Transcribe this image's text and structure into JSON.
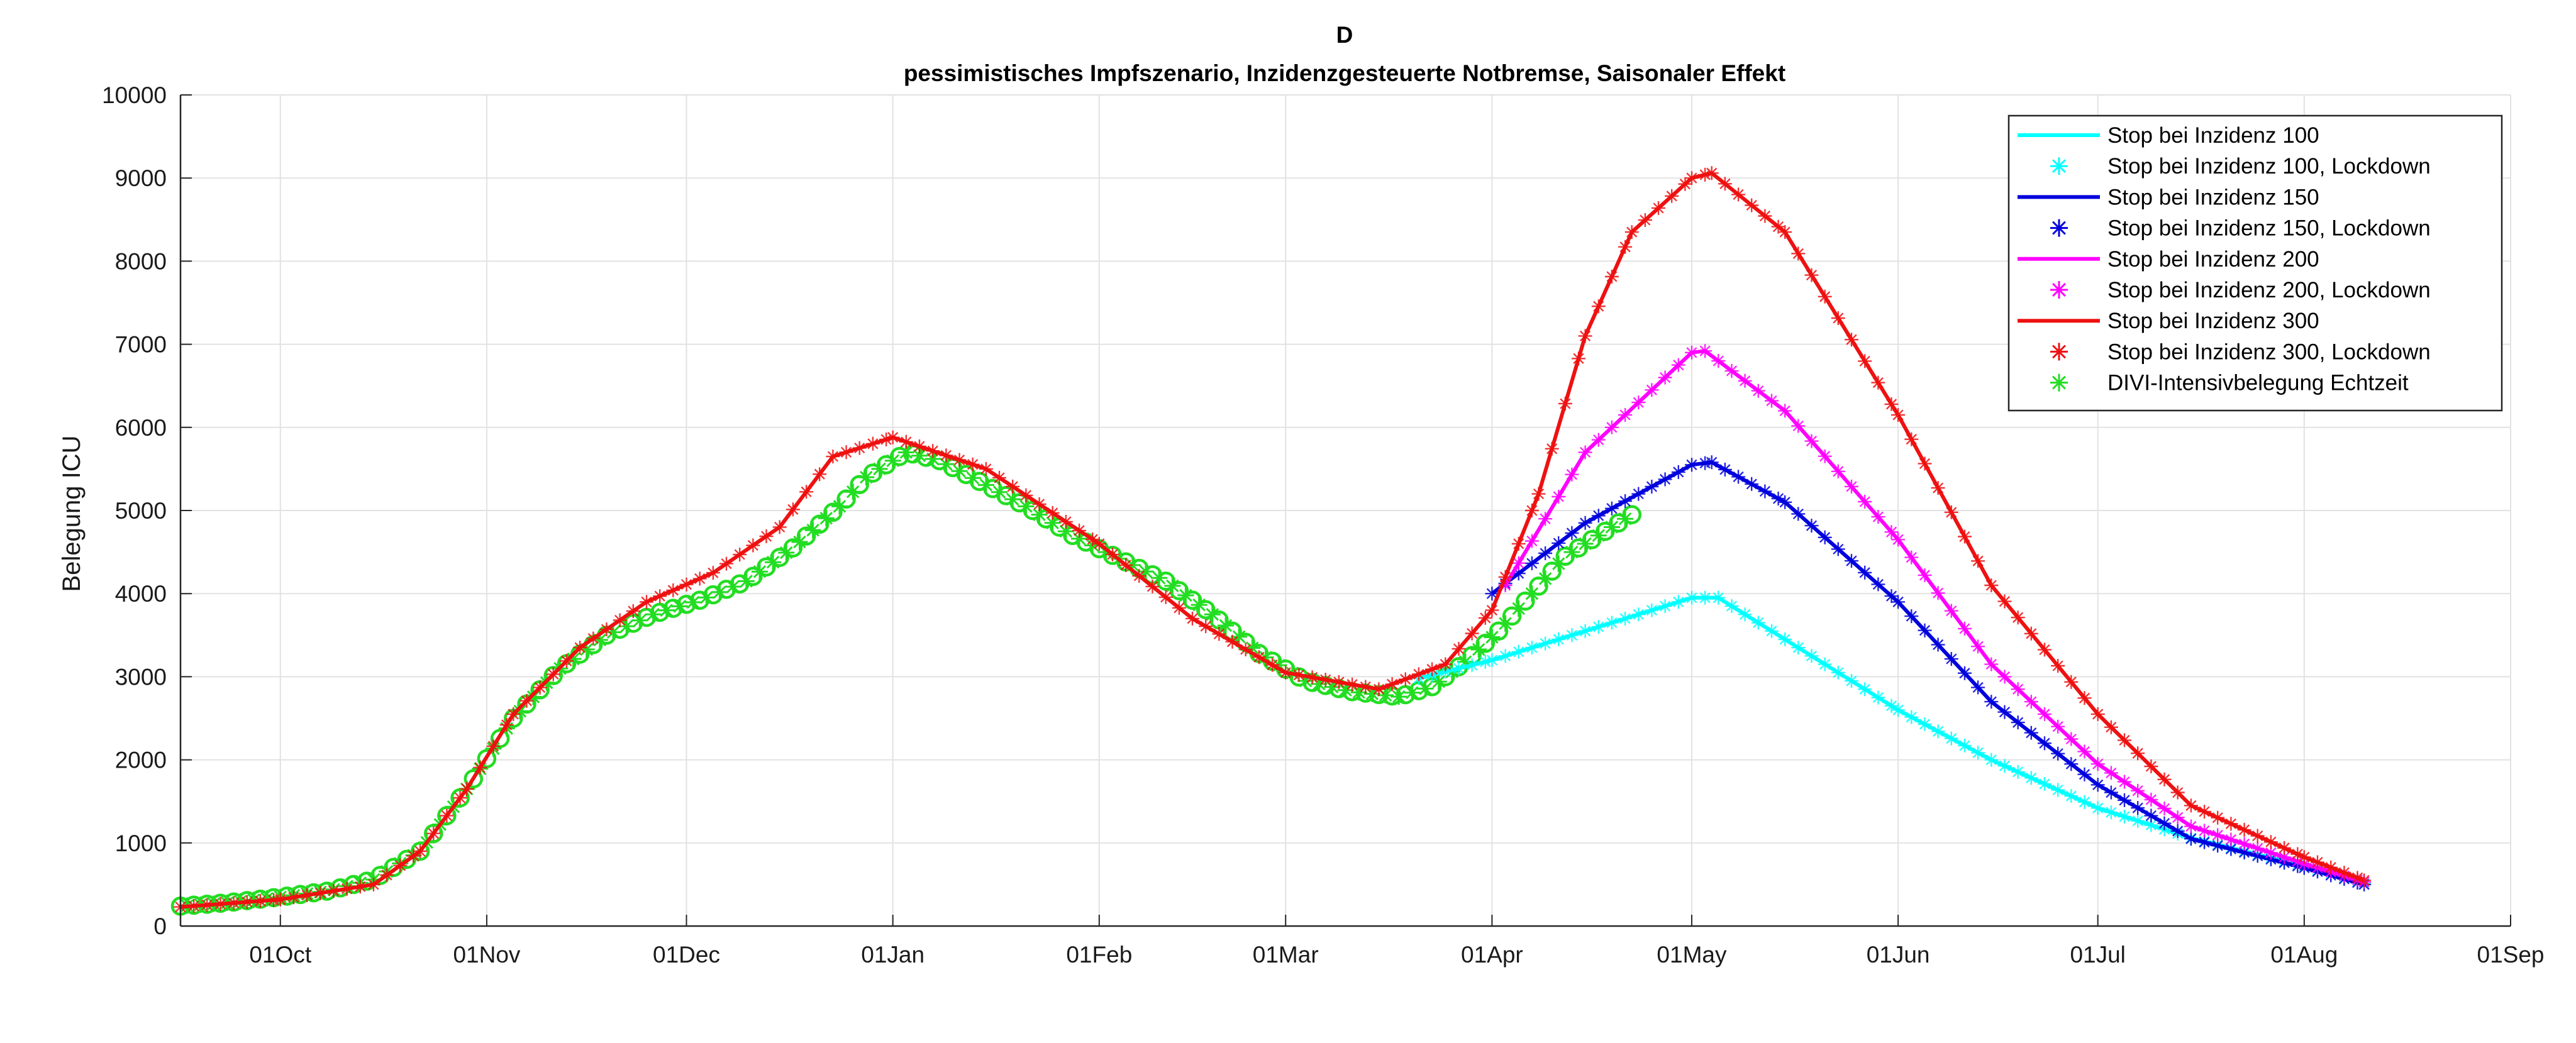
{
  "chart_data": {
    "type": "line",
    "title": "D",
    "subtitle": "pessimistisches Impfszenario, Inzidenzgesteuerte Notbremse, Saisonaler Effekt",
    "xlabel": "",
    "ylabel": "Belegung ICU",
    "x_axis": {
      "min": "2020-09-16",
      "max": "2021-09-01",
      "ticks": [
        {
          "date": "2020-10-01",
          "label": "01Oct"
        },
        {
          "date": "2020-11-01",
          "label": "01Nov"
        },
        {
          "date": "2020-12-01",
          "label": "01Dec"
        },
        {
          "date": "2021-01-01",
          "label": "01Jan"
        },
        {
          "date": "2021-02-01",
          "label": "01Feb"
        },
        {
          "date": "2021-03-01",
          "label": "01Mar"
        },
        {
          "date": "2021-04-01",
          "label": "01Apr"
        },
        {
          "date": "2021-05-01",
          "label": "01May"
        },
        {
          "date": "2021-06-01",
          "label": "01Jun"
        },
        {
          "date": "2021-07-01",
          "label": "01Jul"
        },
        {
          "date": "2021-08-01",
          "label": "01Aug"
        },
        {
          "date": "2021-09-01",
          "label": "01Sep"
        }
      ]
    },
    "ylim": [
      0,
      10000
    ],
    "yticks": [
      "0",
      "1000",
      "2000",
      "3000",
      "4000",
      "5000",
      "6000",
      "7000",
      "8000",
      "9000",
      "10000"
    ],
    "grid": true,
    "legend_position": "top-right",
    "series": [
      {
        "name": "DIVI-Intensivbelegung Echtzeit",
        "color": "#22dd22",
        "style": "circle-and-star markers",
        "points": [
          [
            "2020-09-16",
            240
          ],
          [
            "2020-09-23",
            280
          ],
          [
            "2020-10-01",
            350
          ],
          [
            "2020-10-08",
            420
          ],
          [
            "2020-10-15",
            560
          ],
          [
            "2020-10-22",
            900
          ],
          [
            "2020-10-29",
            1650
          ],
          [
            "2020-11-05",
            2500
          ],
          [
            "2020-11-12",
            3100
          ],
          [
            "2020-11-19",
            3500
          ],
          [
            "2020-11-26",
            3750
          ],
          [
            "2020-12-03",
            3920
          ],
          [
            "2020-12-10",
            4150
          ],
          [
            "2020-12-17",
            4550
          ],
          [
            "2020-12-24",
            5050
          ],
          [
            "2020-12-28",
            5400
          ],
          [
            "2021-01-03",
            5700
          ],
          [
            "2021-01-08",
            5600
          ],
          [
            "2021-01-14",
            5350
          ],
          [
            "2021-01-21",
            5050
          ],
          [
            "2021-01-28",
            4700
          ],
          [
            "2021-02-04",
            4420
          ],
          [
            "2021-02-11",
            4150
          ],
          [
            "2021-02-18",
            3750
          ],
          [
            "2021-02-25",
            3280
          ],
          [
            "2021-03-04",
            2950
          ],
          [
            "2021-03-11",
            2820
          ],
          [
            "2021-03-18",
            2760
          ],
          [
            "2021-03-23",
            2880
          ],
          [
            "2021-03-28",
            3180
          ],
          [
            "2021-04-02",
            3550
          ],
          [
            "2021-04-07",
            4000
          ],
          [
            "2021-04-12",
            4450
          ],
          [
            "2021-04-17",
            4700
          ],
          [
            "2021-04-22",
            4950
          ]
        ]
      },
      {
        "name": "Stop bei Inzidenz 100",
        "color": "#00ffff",
        "style": "line with star markers",
        "points": [
          [
            "2021-03-21",
            2980
          ],
          [
            "2021-04-01",
            3200
          ],
          [
            "2021-04-15",
            3550
          ],
          [
            "2021-05-01",
            3950
          ],
          [
            "2021-05-05",
            3950
          ],
          [
            "2021-05-15",
            3450
          ],
          [
            "2021-06-01",
            2600
          ],
          [
            "2021-06-15",
            2000
          ],
          [
            "2021-07-01",
            1420
          ],
          [
            "2021-07-15",
            1060
          ],
          [
            "2021-08-01",
            720
          ],
          [
            "2021-08-10",
            510
          ]
        ]
      },
      {
        "name": "Stop bei Inzidenz 150",
        "color": "#0000dd",
        "style": "line with star markers",
        "points": [
          [
            "2021-04-01",
            4000
          ],
          [
            "2021-04-15",
            4850
          ],
          [
            "2021-05-01",
            5550
          ],
          [
            "2021-05-04",
            5580
          ],
          [
            "2021-05-15",
            5100
          ],
          [
            "2021-06-01",
            3900
          ],
          [
            "2021-06-15",
            2700
          ],
          [
            "2021-07-01",
            1700
          ],
          [
            "2021-07-15",
            1050
          ],
          [
            "2021-08-01",
            700
          ],
          [
            "2021-08-10",
            500
          ]
        ]
      },
      {
        "name": "Stop bei Inzidenz 200",
        "color": "#ff00ff",
        "style": "line with star markers",
        "points": [
          [
            "2021-04-03",
            4100
          ],
          [
            "2021-04-15",
            5700
          ],
          [
            "2021-05-01",
            6900
          ],
          [
            "2021-05-03",
            6920
          ],
          [
            "2021-05-15",
            6200
          ],
          [
            "2021-06-01",
            4650
          ],
          [
            "2021-06-15",
            3150
          ],
          [
            "2021-07-01",
            1950
          ],
          [
            "2021-07-15",
            1200
          ],
          [
            "2021-08-01",
            750
          ],
          [
            "2021-08-10",
            530
          ]
        ]
      },
      {
        "name": "Stop bei Inzidenz 300",
        "color": "#ee1111",
        "style": "line with star markers",
        "points": [
          [
            "2020-09-16",
            230
          ],
          [
            "2020-10-01",
            320
          ],
          [
            "2020-10-15",
            500
          ],
          [
            "2020-10-22",
            900
          ],
          [
            "2020-10-29",
            1650
          ],
          [
            "2020-11-05",
            2550
          ],
          [
            "2020-11-15",
            3350
          ],
          [
            "2020-11-25",
            3900
          ],
          [
            "2020-12-05",
            4250
          ],
          [
            "2020-12-15",
            4800
          ],
          [
            "2020-12-23",
            5650
          ],
          [
            "2021-01-01",
            5880
          ],
          [
            "2021-01-15",
            5500
          ],
          [
            "2021-02-01",
            4600
          ],
          [
            "2021-02-15",
            3700
          ],
          [
            "2021-03-01",
            3050
          ],
          [
            "2021-03-15",
            2850
          ],
          [
            "2021-03-25",
            3150
          ],
          [
            "2021-04-01",
            3800
          ],
          [
            "2021-04-08",
            5200
          ],
          [
            "2021-04-15",
            7100
          ],
          [
            "2021-04-22",
            8350
          ],
          [
            "2021-05-01",
            9000
          ],
          [
            "2021-05-04",
            9060
          ],
          [
            "2021-05-15",
            8350
          ],
          [
            "2021-06-01",
            6150
          ],
          [
            "2021-06-15",
            4100
          ],
          [
            "2021-07-01",
            2550
          ],
          [
            "2021-07-15",
            1450
          ],
          [
            "2021-08-01",
            830
          ],
          [
            "2021-08-10",
            550
          ]
        ]
      }
    ],
    "legend": [
      {
        "label": "Stop bei Inzidenz 100",
        "color": "#00ffff",
        "marker": "line"
      },
      {
        "label": "Stop bei Inzidenz 100, Lockdown",
        "color": "#00ffff",
        "marker": "star"
      },
      {
        "label": "Stop bei Inzidenz 150",
        "color": "#0000dd",
        "marker": "line"
      },
      {
        "label": "Stop bei Inzidenz 150, Lockdown",
        "color": "#0000dd",
        "marker": "star"
      },
      {
        "label": "Stop bei Inzidenz 200",
        "color": "#ff00ff",
        "marker": "line"
      },
      {
        "label": "Stop bei Inzidenz 200, Lockdown",
        "color": "#ff00ff",
        "marker": "star"
      },
      {
        "label": "Stop bei Inzidenz 300",
        "color": "#ee1111",
        "marker": "line"
      },
      {
        "label": "Stop bei Inzidenz 300, Lockdown",
        "color": "#ee1111",
        "marker": "star"
      },
      {
        "label": "DIVI-Intensivbelegung Echtzeit",
        "color": "#22dd22",
        "marker": "star"
      }
    ]
  }
}
